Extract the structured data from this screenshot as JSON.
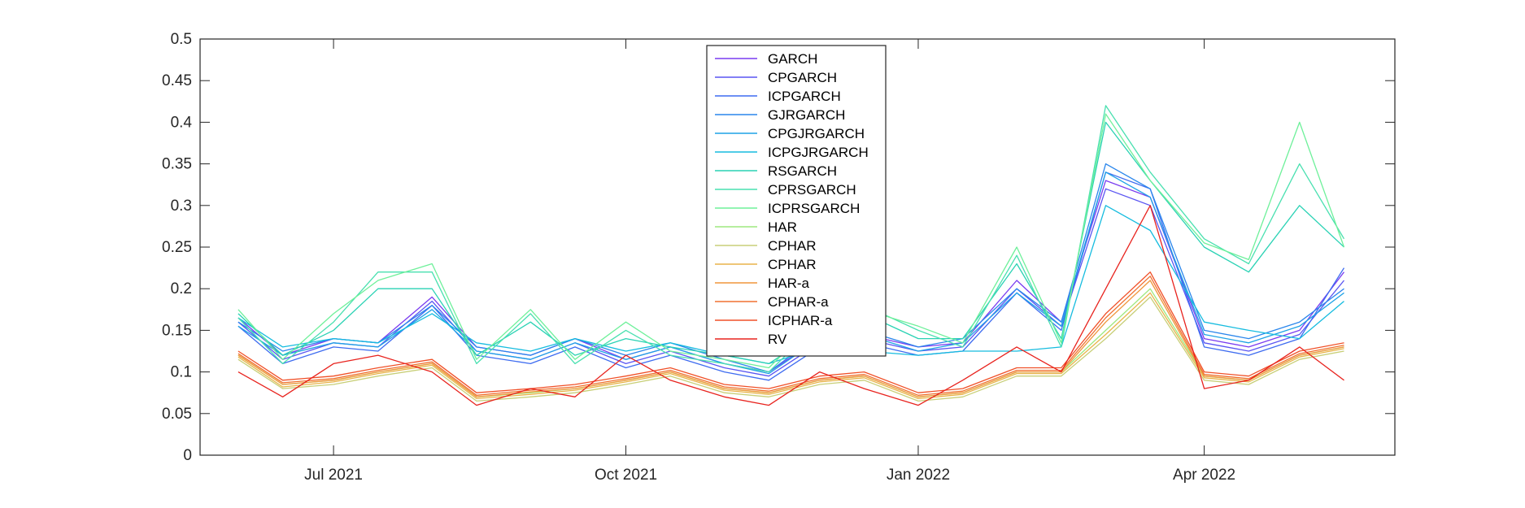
{
  "chart_data": {
    "type": "line",
    "title": "",
    "xlabel": "",
    "ylabel": "",
    "x_range": [
      "2021-05-20",
      "2022-05-31"
    ],
    "ylim": [
      0,
      0.5
    ],
    "yticks": [
      0,
      0.05,
      0.1,
      0.15,
      0.2,
      0.25,
      0.3,
      0.35,
      0.4,
      0.45,
      0.5
    ],
    "ytick_labels": [
      "0",
      "0.05",
      "0.1",
      "0.15",
      "0.2",
      "0.25",
      "0.3",
      "0.35",
      "0.4",
      "0.45",
      "0.5"
    ],
    "xticks": [
      {
        "date": "2021-07-01",
        "label": "Jul 2021"
      },
      {
        "date": "2021-10-01",
        "label": "Oct 2021"
      },
      {
        "date": "2022-01-01",
        "label": "Jan 2022"
      },
      {
        "date": "2022-04-01",
        "label": "Apr 2022"
      }
    ],
    "grid": false,
    "legend_position": "top-center",
    "x": [
      "2021-06-01",
      "2021-06-15",
      "2021-07-01",
      "2021-07-15",
      "2021-08-01",
      "2021-08-15",
      "2021-09-01",
      "2021-09-15",
      "2021-10-01",
      "2021-10-15",
      "2021-11-01",
      "2021-11-15",
      "2021-12-01",
      "2021-12-15",
      "2022-01-01",
      "2022-01-15",
      "2022-02-01",
      "2022-02-15",
      "2022-03-01",
      "2022-03-15",
      "2022-04-01",
      "2022-04-15",
      "2022-05-01",
      "2022-05-15"
    ],
    "series": [
      {
        "name": "GARCH",
        "color": "#7a3cf0",
        "values": [
          0.165,
          0.12,
          0.14,
          0.135,
          0.19,
          0.13,
          0.12,
          0.14,
          0.115,
          0.13,
          0.11,
          0.1,
          0.14,
          0.145,
          0.13,
          0.135,
          0.21,
          0.16,
          0.33,
          0.31,
          0.14,
          0.13,
          0.15,
          0.22
        ]
      },
      {
        "name": "CPGARCH",
        "color": "#5a55f2",
        "values": [
          0.16,
          0.115,
          0.135,
          0.13,
          0.185,
          0.125,
          0.115,
          0.135,
          0.11,
          0.125,
          0.105,
          0.095,
          0.135,
          0.14,
          0.125,
          0.13,
          0.2,
          0.155,
          0.32,
          0.3,
          0.135,
          0.125,
          0.145,
          0.21
        ]
      },
      {
        "name": "ICPGARCH",
        "color": "#3e6cf0",
        "values": [
          0.155,
          0.11,
          0.13,
          0.125,
          0.18,
          0.12,
          0.11,
          0.13,
          0.105,
          0.12,
          0.1,
          0.09,
          0.13,
          0.135,
          0.12,
          0.125,
          0.195,
          0.15,
          0.34,
          0.32,
          0.13,
          0.12,
          0.14,
          0.225
        ]
      },
      {
        "name": "GJRGARCH",
        "color": "#2a86ec",
        "values": [
          0.16,
          0.125,
          0.14,
          0.135,
          0.18,
          0.13,
          0.12,
          0.14,
          0.12,
          0.135,
          0.115,
          0.1,
          0.145,
          0.15,
          0.13,
          0.14,
          0.2,
          0.16,
          0.35,
          0.32,
          0.15,
          0.14,
          0.16,
          0.2
        ]
      },
      {
        "name": "CPGJRGARCH",
        "color": "#1fa2e6",
        "values": [
          0.155,
          0.12,
          0.135,
          0.13,
          0.175,
          0.125,
          0.115,
          0.135,
          0.115,
          0.13,
          0.11,
          0.098,
          0.14,
          0.145,
          0.125,
          0.135,
          0.195,
          0.155,
          0.34,
          0.31,
          0.145,
          0.135,
          0.155,
          0.195
        ]
      },
      {
        "name": "ICPGJRGARCH",
        "color": "#16bcdf",
        "values": [
          0.165,
          0.13,
          0.14,
          0.135,
          0.17,
          0.135,
          0.125,
          0.14,
          0.125,
          0.135,
          0.12,
          0.11,
          0.13,
          0.125,
          0.12,
          0.125,
          0.125,
          0.13,
          0.3,
          0.27,
          0.16,
          0.15,
          0.14,
          0.185
        ]
      },
      {
        "name": "RSGARCH",
        "color": "#2ad2b4",
        "values": [
          0.17,
          0.12,
          0.15,
          0.2,
          0.2,
          0.12,
          0.16,
          0.12,
          0.14,
          0.13,
          0.12,
          0.11,
          0.15,
          0.17,
          0.14,
          0.14,
          0.23,
          0.14,
          0.4,
          0.33,
          0.25,
          0.22,
          0.3,
          0.25
        ]
      },
      {
        "name": "CPRSGARCH",
        "color": "#49e0b0",
        "values": [
          0.165,
          0.11,
          0.16,
          0.22,
          0.22,
          0.11,
          0.17,
          0.11,
          0.15,
          0.12,
          0.11,
          0.1,
          0.16,
          0.18,
          0.15,
          0.13,
          0.24,
          0.13,
          0.42,
          0.34,
          0.26,
          0.23,
          0.35,
          0.26
        ]
      },
      {
        "name": "ICPRSGARCH",
        "color": "#6ef09a",
        "values": [
          0.175,
          0.115,
          0.17,
          0.21,
          0.23,
          0.115,
          0.175,
          0.115,
          0.16,
          0.125,
          0.115,
          0.105,
          0.165,
          0.175,
          0.155,
          0.135,
          0.25,
          0.135,
          0.41,
          0.33,
          0.255,
          0.235,
          0.4,
          0.25
        ]
      },
      {
        "name": "HAR",
        "color": "#9ee87e",
        "values": [
          0.12,
          0.085,
          0.09,
          0.1,
          0.11,
          0.07,
          0.075,
          0.08,
          0.09,
          0.1,
          0.08,
          0.075,
          0.09,
          0.095,
          0.07,
          0.075,
          0.1,
          0.1,
          0.15,
          0.2,
          0.095,
          0.09,
          0.12,
          0.13
        ]
      },
      {
        "name": "CPHAR",
        "color": "#c8cf78",
        "values": [
          0.115,
          0.08,
          0.085,
          0.095,
          0.105,
          0.065,
          0.07,
          0.075,
          0.085,
          0.095,
          0.075,
          0.07,
          0.085,
          0.09,
          0.065,
          0.07,
          0.095,
          0.095,
          0.14,
          0.19,
          0.09,
          0.085,
          0.115,
          0.125
        ]
      },
      {
        "name": "CPHAR",
        "color": "#e8b44a",
        "values": [
          0.118,
          0.082,
          0.088,
          0.098,
          0.108,
          0.068,
          0.073,
          0.078,
          0.088,
          0.098,
          0.078,
          0.073,
          0.088,
          0.093,
          0.068,
          0.073,
          0.098,
          0.098,
          0.145,
          0.195,
          0.093,
          0.088,
          0.118,
          0.128
        ]
      },
      {
        "name": "HAR-a",
        "color": "#f0963a",
        "values": [
          0.12,
          0.085,
          0.09,
          0.1,
          0.11,
          0.07,
          0.076,
          0.08,
          0.09,
          0.1,
          0.08,
          0.075,
          0.09,
          0.095,
          0.07,
          0.075,
          0.1,
          0.1,
          0.16,
          0.21,
          0.095,
          0.09,
          0.12,
          0.13
        ]
      },
      {
        "name": "CPHAR-a",
        "color": "#f07030",
        "values": [
          0.122,
          0.087,
          0.092,
          0.102,
          0.112,
          0.072,
          0.078,
          0.082,
          0.092,
          0.102,
          0.082,
          0.077,
          0.092,
          0.097,
          0.072,
          0.077,
          0.102,
          0.102,
          0.165,
          0.215,
          0.097,
          0.092,
          0.122,
          0.132
        ]
      },
      {
        "name": "ICPHAR-a",
        "color": "#f05028",
        "values": [
          0.125,
          0.09,
          0.095,
          0.105,
          0.115,
          0.075,
          0.08,
          0.085,
          0.095,
          0.105,
          0.085,
          0.08,
          0.095,
          0.1,
          0.075,
          0.08,
          0.105,
          0.105,
          0.17,
          0.22,
          0.1,
          0.095,
          0.125,
          0.135
        ]
      },
      {
        "name": "RV",
        "color": "#e8231e",
        "values": [
          0.1,
          0.07,
          0.11,
          0.12,
          0.1,
          0.06,
          0.08,
          0.07,
          0.12,
          0.09,
          0.07,
          0.06,
          0.1,
          0.08,
          0.06,
          0.09,
          0.13,
          0.1,
          0.2,
          0.3,
          0.08,
          0.09,
          0.13,
          0.09
        ]
      }
    ]
  }
}
